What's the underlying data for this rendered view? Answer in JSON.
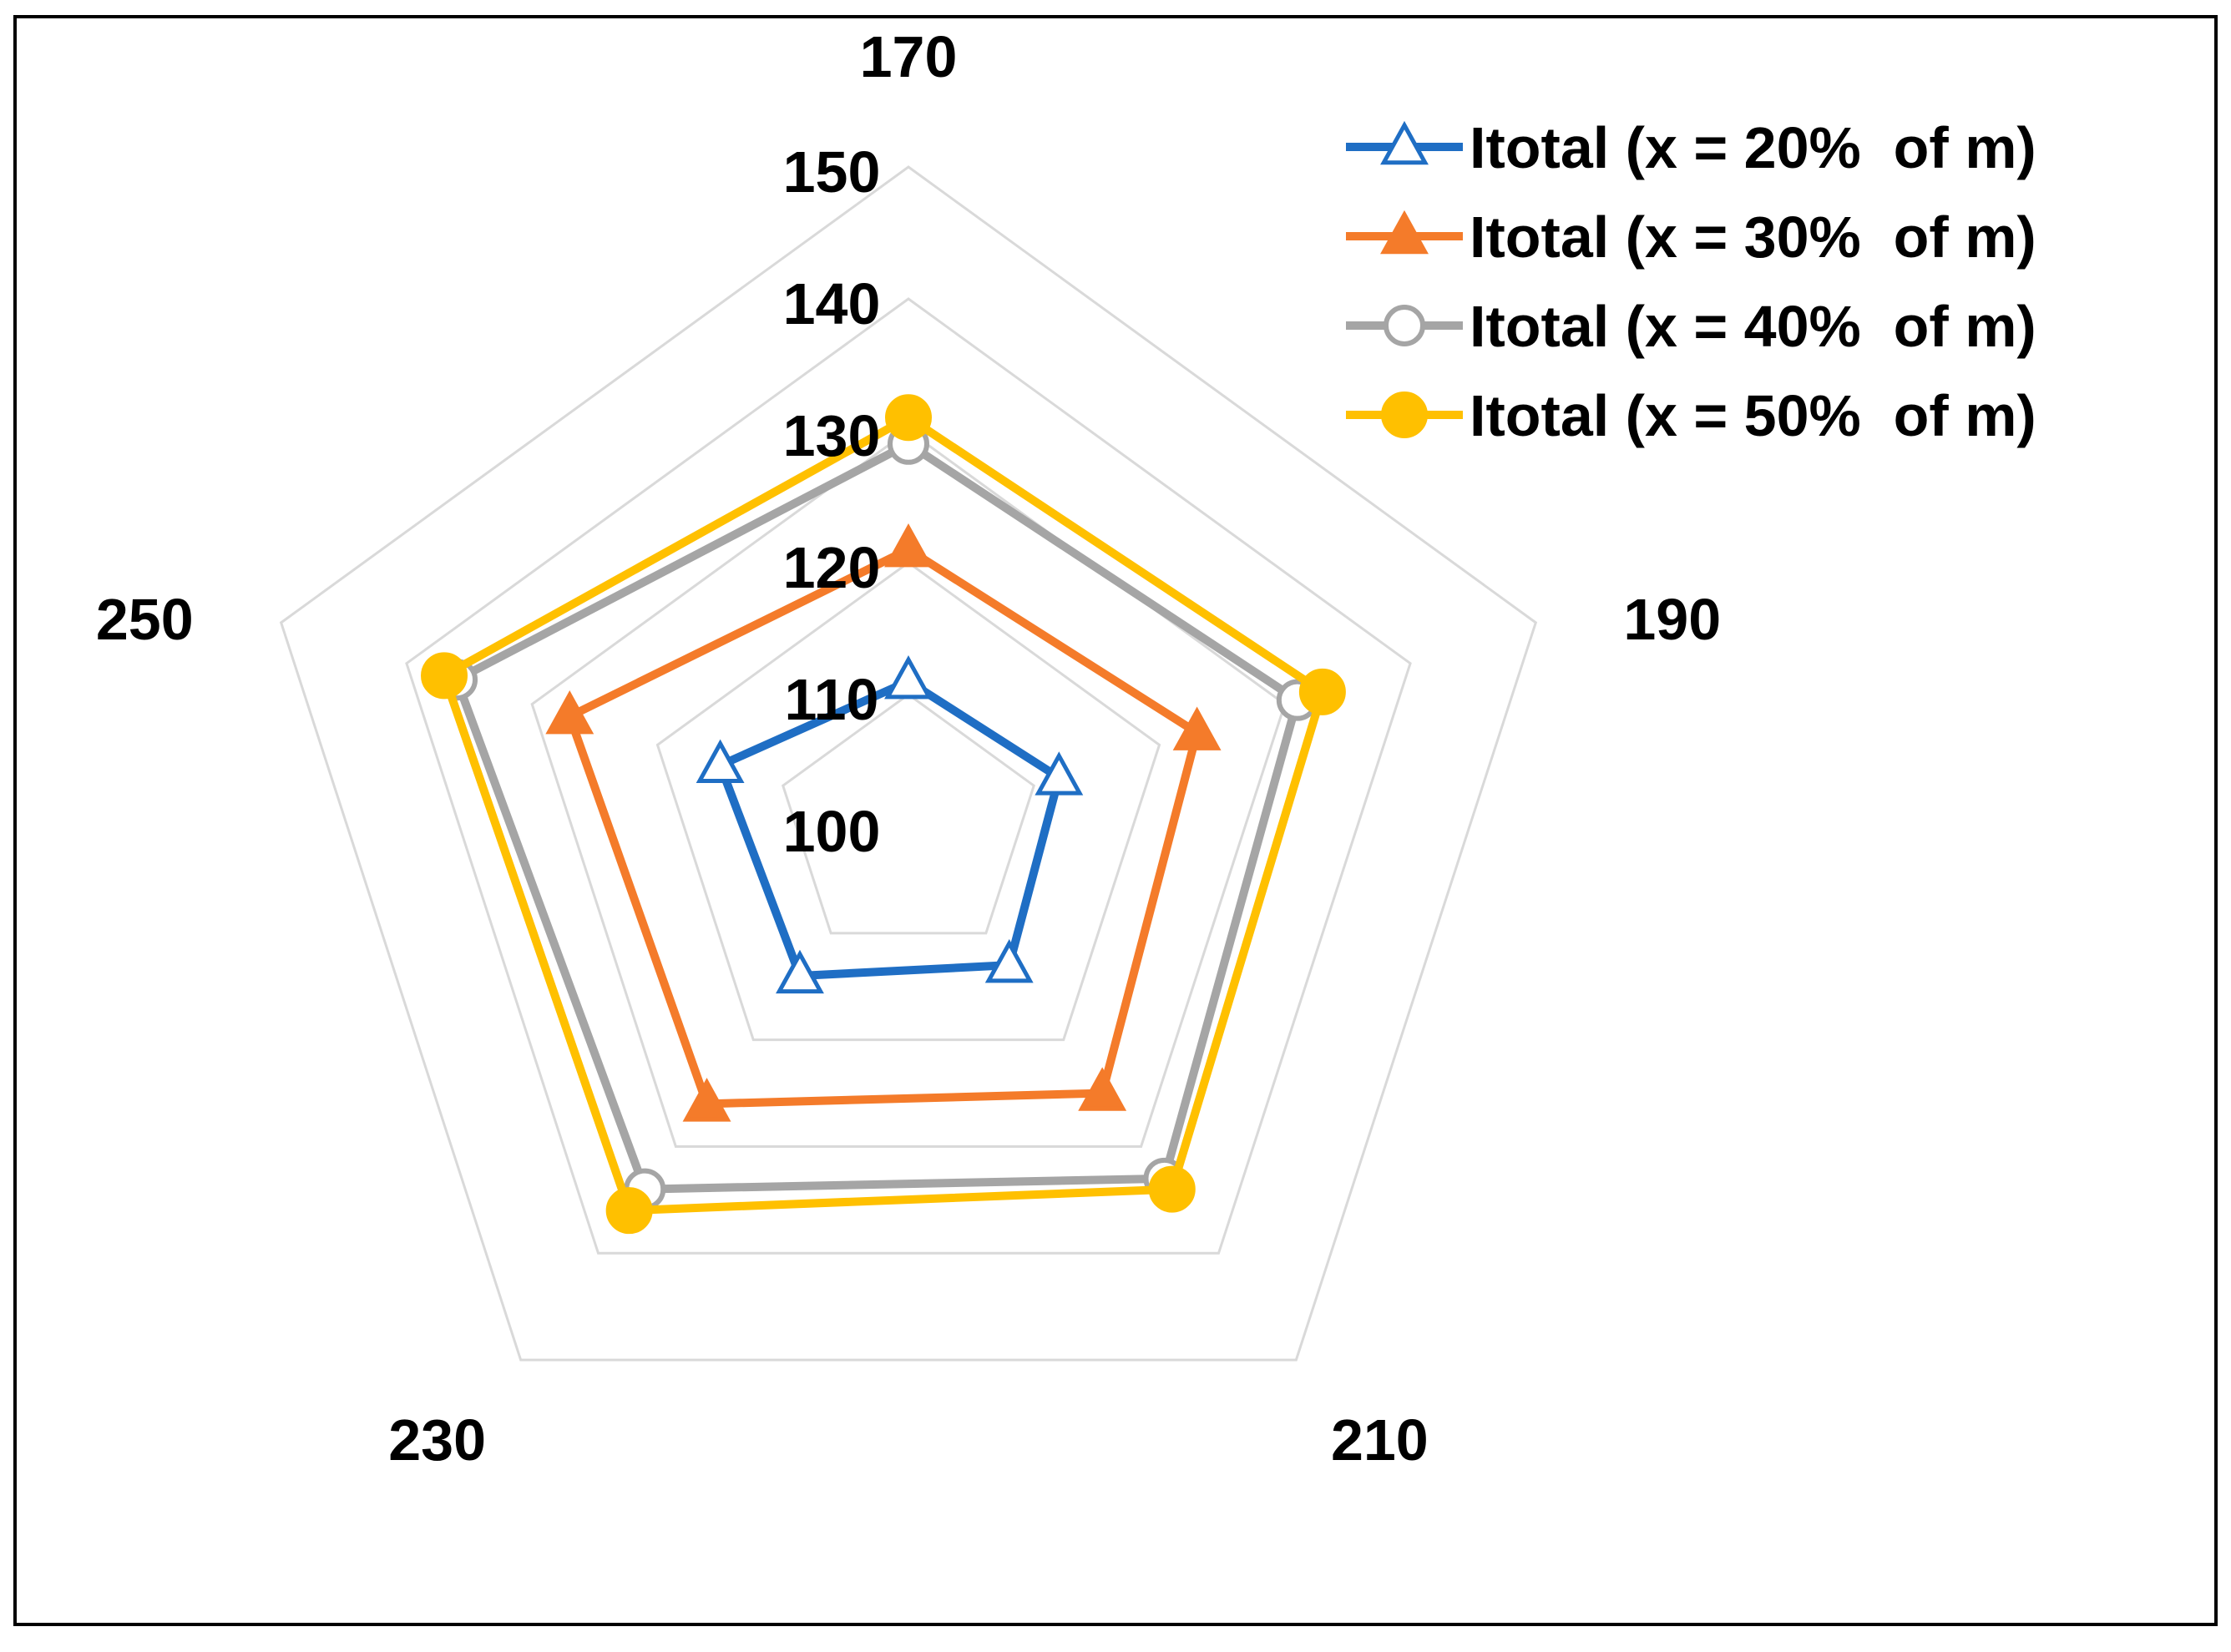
{
  "chart_data": {
    "type": "radar",
    "title": "",
    "categories": [
      "170",
      "190",
      "210",
      "230",
      "250"
    ],
    "radial_ticks": [
      "100",
      "110",
      "120",
      "130",
      "140",
      "150"
    ],
    "rlim": [
      100,
      150
    ],
    "grid": true,
    "legend_position": "top-right",
    "series": [
      {
        "name": "Itotal (x = 20%  of m)",
        "color": "#1F6EC4",
        "marker": "triangle-open",
        "values": [
          111,
          112,
          113,
          114,
          115
        ]
      },
      {
        "name": "Itotal (x = 30%  of m)",
        "color": "#F47B2A",
        "marker": "triangle-filled",
        "values": [
          121,
          123,
          125,
          126,
          127
        ]
      },
      {
        "name": "Itotal (x = 40%  of m)",
        "color": "#A5A5A5",
        "marker": "circle-open",
        "values": [
          129,
          131,
          133,
          134,
          136
        ]
      },
      {
        "name": "Itotal (x = 50%  of m)",
        "color": "#FFC000",
        "marker": "circle-filled",
        "values": [
          131,
          133,
          134,
          136,
          137
        ]
      }
    ]
  }
}
